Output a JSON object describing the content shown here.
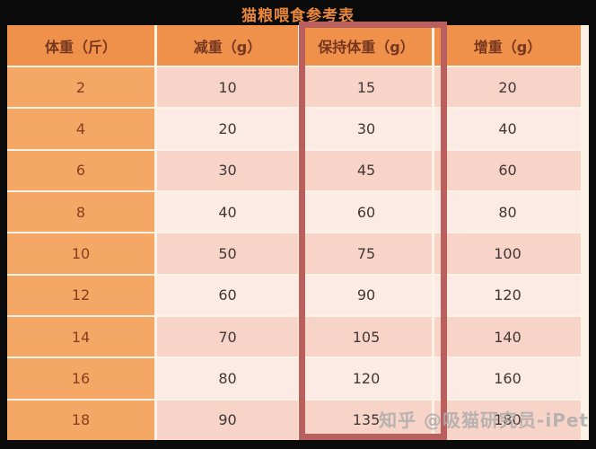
{
  "title": "猫粮喂食参考表",
  "chart_data": {
    "type": "table",
    "title": "猫粮喂食参考表",
    "columns": [
      "体重（斤）",
      "减重（g）",
      "保持体重（g）",
      "增重（g）"
    ],
    "rows": [
      [
        "2",
        "10",
        "15",
        "20"
      ],
      [
        "4",
        "20",
        "30",
        "40"
      ],
      [
        "6",
        "30",
        "45",
        "60"
      ],
      [
        "8",
        "40",
        "60",
        "80"
      ],
      [
        "10",
        "50",
        "75",
        "100"
      ],
      [
        "12",
        "60",
        "90",
        "120"
      ],
      [
        "14",
        "70",
        "105",
        "140"
      ],
      [
        "16",
        "80",
        "120",
        "160"
      ],
      [
        "18",
        "90",
        "135",
        "180"
      ]
    ],
    "highlighted_column_index": 2,
    "highlighted_column_label": "保持体重（g）"
  },
  "watermark": {
    "text": "知乎 @吸猫研究员-iPet"
  },
  "colors": {
    "background": "#0b0b0b",
    "title_text": "#E8873B",
    "header_background": "#F0914B",
    "header_text": "#76361F",
    "weight_column_background": "#F5A765",
    "weight_column_text": "#8B3C1E",
    "row_pink_dark": "#F8D3C8",
    "row_pink_light": "#FCEBE4",
    "cell_text": "#3F3835",
    "highlight_border": "#B95F5D",
    "grid_gap_line": "#FDF2E6",
    "watermark_text": "#ABABAB"
  }
}
